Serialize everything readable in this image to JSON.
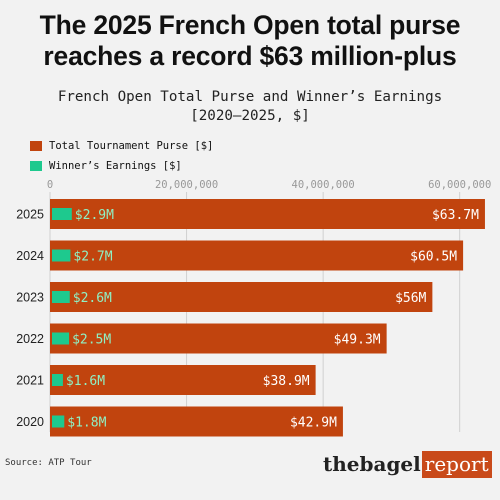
{
  "headline": "The 2025 French Open total purse reaches a record $63 million-plus",
  "chart_data": {
    "type": "bar",
    "orientation": "horizontal",
    "title": "French Open Total Purse and Winner’s Earnings",
    "subtitle": "[2020–2025, $]",
    "categories": [
      "2025",
      "2024",
      "2023",
      "2022",
      "2021",
      "2020"
    ],
    "series": [
      {
        "name": "Total Tournament Purse [$]",
        "color": "#c1440e",
        "values": [
          63700000,
          60500000,
          56000000,
          49300000,
          38900000,
          42900000
        ],
        "labels": [
          "$63.7M",
          "$60.5M",
          "$56M",
          "$49.3M",
          "$38.9M",
          "$42.9M"
        ]
      },
      {
        "name": "Winner’s Earnings [$]",
        "color": "#1ec98e",
        "values": [
          2900000,
          2700000,
          2600000,
          2500000,
          1600000,
          1800000
        ],
        "labels": [
          "$2.9M",
          "$2.7M",
          "$2.6M",
          "$2.5M",
          "$1.6M",
          "$1.8M"
        ]
      }
    ],
    "xticks": [
      0,
      20000000,
      40000000,
      60000000
    ],
    "xtick_labels": [
      "0",
      "20,000,000",
      "40,000,000",
      "60,000,000"
    ],
    "xlim": [
      0,
      64000000
    ],
    "grid": true,
    "legend": "top-left"
  },
  "source": "Source: ATP Tour",
  "logo": {
    "part1": "thebagel",
    "part2": "report"
  }
}
